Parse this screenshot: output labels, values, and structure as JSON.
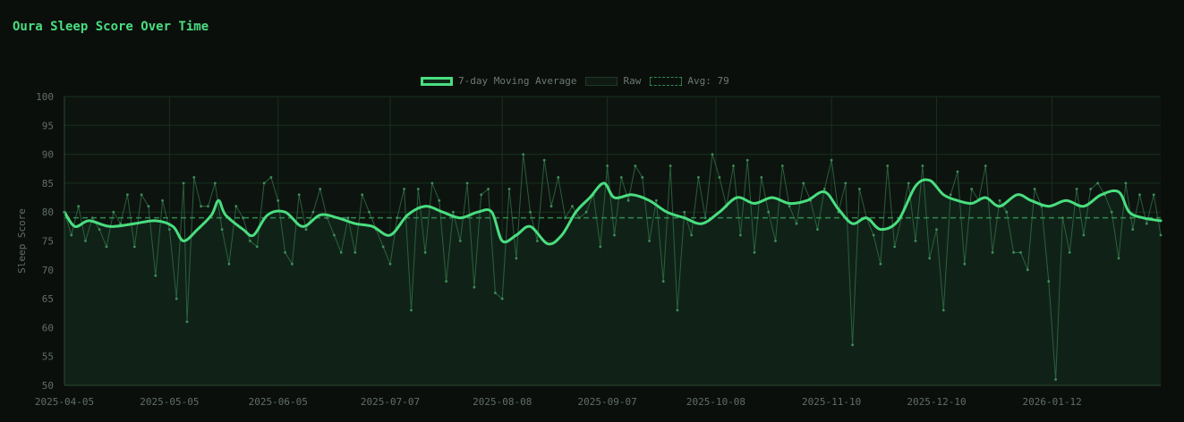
{
  "title": "Oura Sleep Score Over Time",
  "legend": {
    "ma_label": "7-day Moving Average",
    "raw_label": "Raw",
    "avg_label": "Avg: 79"
  },
  "colors": {
    "background": "#0b0f0c",
    "accent": "#4ade80",
    "area_fill": "#112318",
    "grid": "#17301f",
    "axis_text": "#5f6f64",
    "raw_line": "#2f6b44",
    "avg_line": "#2f8a4e"
  },
  "chart_data": {
    "type": "line",
    "title": "Oura Sleep Score Over Time",
    "xlabel": "",
    "ylabel": "Sleep Score",
    "ylim": [
      50,
      100
    ],
    "yticks": [
      50,
      55,
      60,
      65,
      70,
      75,
      80,
      85,
      90,
      95,
      100
    ],
    "xlim": [
      "2025-04-05",
      "2026-02-12"
    ],
    "xticks": [
      "2025-04-05",
      "2025-05-05",
      "2025-06-05",
      "2025-07-07",
      "2025-08-08",
      "2025-09-07",
      "2025-10-08",
      "2025-11-10",
      "2025-12-10",
      "2026-01-12"
    ],
    "grid": true,
    "legend_position": "top-center",
    "average": 79,
    "series": [
      {
        "name": "7-day Moving Average",
        "points": [
          [
            "2025-04-05",
            80
          ],
          [
            "2025-04-08",
            77.5
          ],
          [
            "2025-04-12",
            78.5
          ],
          [
            "2025-04-18",
            77.5
          ],
          [
            "2025-04-25",
            78
          ],
          [
            "2025-05-01",
            78.5
          ],
          [
            "2025-05-06",
            77.5
          ],
          [
            "2025-05-09",
            75
          ],
          [
            "2025-05-13",
            77
          ],
          [
            "2025-05-17",
            79.5
          ],
          [
            "2025-05-19",
            82
          ],
          [
            "2025-05-21",
            79.5
          ],
          [
            "2025-05-26",
            77
          ],
          [
            "2025-05-29",
            76
          ],
          [
            "2025-06-02",
            79.5
          ],
          [
            "2025-06-07",
            80
          ],
          [
            "2025-06-12",
            77.5
          ],
          [
            "2025-06-17",
            79.5
          ],
          [
            "2025-06-22",
            79
          ],
          [
            "2025-06-27",
            78
          ],
          [
            "2025-07-02",
            77.5
          ],
          [
            "2025-07-07",
            76
          ],
          [
            "2025-07-12",
            79.5
          ],
          [
            "2025-07-17",
            81
          ],
          [
            "2025-07-22",
            80
          ],
          [
            "2025-07-27",
            79
          ],
          [
            "2025-08-01",
            80
          ],
          [
            "2025-08-05",
            80
          ],
          [
            "2025-08-08",
            75
          ],
          [
            "2025-08-12",
            76
          ],
          [
            "2025-08-16",
            77.5
          ],
          [
            "2025-08-21",
            74.5
          ],
          [
            "2025-08-25",
            76
          ],
          [
            "2025-08-29",
            80
          ],
          [
            "2025-09-02",
            82.5
          ],
          [
            "2025-09-06",
            85
          ],
          [
            "2025-09-09",
            82.5
          ],
          [
            "2025-09-14",
            83
          ],
          [
            "2025-09-19",
            82
          ],
          [
            "2025-09-24",
            80
          ],
          [
            "2025-09-29",
            79
          ],
          [
            "2025-10-04",
            78
          ],
          [
            "2025-10-09",
            80
          ],
          [
            "2025-10-14",
            82.5
          ],
          [
            "2025-10-19",
            81.5
          ],
          [
            "2025-10-24",
            82.5
          ],
          [
            "2025-10-29",
            81.5
          ],
          [
            "2025-11-03",
            82
          ],
          [
            "2025-11-08",
            83.5
          ],
          [
            "2025-11-12",
            80.5
          ],
          [
            "2025-11-16",
            78
          ],
          [
            "2025-11-20",
            79
          ],
          [
            "2025-11-24",
            77
          ],
          [
            "2025-11-29",
            78.5
          ],
          [
            "2025-12-04",
            84.5
          ],
          [
            "2025-12-08",
            85.5
          ],
          [
            "2025-12-12",
            83
          ],
          [
            "2025-12-16",
            82
          ],
          [
            "2025-12-20",
            81.5
          ],
          [
            "2025-12-24",
            82.5
          ],
          [
            "2025-12-28",
            81
          ],
          [
            "2026-01-02",
            83
          ],
          [
            "2026-01-06",
            82
          ],
          [
            "2026-01-11",
            81
          ],
          [
            "2026-01-16",
            82
          ],
          [
            "2026-01-21",
            81
          ],
          [
            "2026-01-26",
            83
          ],
          [
            "2026-01-31",
            83.5
          ],
          [
            "2026-02-03",
            80
          ],
          [
            "2026-02-07",
            79
          ],
          [
            "2026-02-12",
            78.5
          ]
        ]
      },
      {
        "name": "Raw",
        "points": [
          [
            "2025-04-05",
            80
          ],
          [
            "2025-04-07",
            76
          ],
          [
            "2025-04-09",
            81
          ],
          [
            "2025-04-11",
            75
          ],
          [
            "2025-04-13",
            79
          ],
          [
            "2025-04-15",
            77
          ],
          [
            "2025-04-17",
            74
          ],
          [
            "2025-04-19",
            80
          ],
          [
            "2025-04-21",
            78
          ],
          [
            "2025-04-23",
            83
          ],
          [
            "2025-04-25",
            74
          ],
          [
            "2025-04-27",
            83
          ],
          [
            "2025-04-29",
            81
          ],
          [
            "2025-05-01",
            69
          ],
          [
            "2025-05-03",
            82
          ],
          [
            "2025-05-05",
            77
          ],
          [
            "2025-05-07",
            65
          ],
          [
            "2025-05-09",
            85
          ],
          [
            "2025-05-10",
            61
          ],
          [
            "2025-05-12",
            86
          ],
          [
            "2025-05-14",
            81
          ],
          [
            "2025-05-16",
            81
          ],
          [
            "2025-05-18",
            85
          ],
          [
            "2025-05-20",
            77
          ],
          [
            "2025-05-22",
            71
          ],
          [
            "2025-05-24",
            81
          ],
          [
            "2025-05-26",
            79
          ],
          [
            "2025-05-28",
            75
          ],
          [
            "2025-05-30",
            74
          ],
          [
            "2025-06-01",
            85
          ],
          [
            "2025-06-03",
            86
          ],
          [
            "2025-06-05",
            82
          ],
          [
            "2025-06-07",
            73
          ],
          [
            "2025-06-09",
            71
          ],
          [
            "2025-06-11",
            83
          ],
          [
            "2025-06-13",
            77
          ],
          [
            "2025-06-15",
            80
          ],
          [
            "2025-06-17",
            84
          ],
          [
            "2025-06-19",
            79
          ],
          [
            "2025-06-21",
            76
          ],
          [
            "2025-06-23",
            73
          ],
          [
            "2025-06-25",
            79
          ],
          [
            "2025-06-27",
            73
          ],
          [
            "2025-06-29",
            83
          ],
          [
            "2025-07-01",
            80
          ],
          [
            "2025-07-03",
            77
          ],
          [
            "2025-07-05",
            74
          ],
          [
            "2025-07-07",
            71
          ],
          [
            "2025-07-09",
            79
          ],
          [
            "2025-07-11",
            84
          ],
          [
            "2025-07-13",
            63
          ],
          [
            "2025-07-15",
            84
          ],
          [
            "2025-07-17",
            73
          ],
          [
            "2025-07-19",
            85
          ],
          [
            "2025-07-21",
            82
          ],
          [
            "2025-07-23",
            68
          ],
          [
            "2025-07-25",
            80
          ],
          [
            "2025-07-27",
            75
          ],
          [
            "2025-07-29",
            85
          ],
          [
            "2025-07-31",
            67
          ],
          [
            "2025-08-02",
            83
          ],
          [
            "2025-08-04",
            84
          ],
          [
            "2025-08-06",
            66
          ],
          [
            "2025-08-08",
            65
          ],
          [
            "2025-08-10",
            84
          ],
          [
            "2025-08-12",
            72
          ],
          [
            "2025-08-14",
            90
          ],
          [
            "2025-08-16",
            80
          ],
          [
            "2025-08-18",
            75
          ],
          [
            "2025-08-20",
            89
          ],
          [
            "2025-08-22",
            81
          ],
          [
            "2025-08-24",
            86
          ],
          [
            "2025-08-26",
            79
          ],
          [
            "2025-08-28",
            81
          ],
          [
            "2025-08-30",
            79
          ],
          [
            "2025-09-01",
            80
          ],
          [
            "2025-09-03",
            83
          ],
          [
            "2025-09-05",
            74
          ],
          [
            "2025-09-07",
            88
          ],
          [
            "2025-09-09",
            76
          ],
          [
            "2025-09-11",
            86
          ],
          [
            "2025-09-13",
            82
          ],
          [
            "2025-09-15",
            88
          ],
          [
            "2025-09-17",
            86
          ],
          [
            "2025-09-19",
            75
          ],
          [
            "2025-09-21",
            82
          ],
          [
            "2025-09-23",
            68
          ],
          [
            "2025-09-25",
            88
          ],
          [
            "2025-09-27",
            63
          ],
          [
            "2025-09-29",
            80
          ],
          [
            "2025-10-01",
            76
          ],
          [
            "2025-10-03",
            86
          ],
          [
            "2025-10-05",
            79
          ],
          [
            "2025-10-07",
            90
          ],
          [
            "2025-10-09",
            86
          ],
          [
            "2025-10-11",
            81
          ],
          [
            "2025-10-13",
            88
          ],
          [
            "2025-10-15",
            76
          ],
          [
            "2025-10-17",
            89
          ],
          [
            "2025-10-19",
            73
          ],
          [
            "2025-10-21",
            86
          ],
          [
            "2025-10-23",
            80
          ],
          [
            "2025-10-25",
            75
          ],
          [
            "2025-10-27",
            88
          ],
          [
            "2025-10-29",
            81
          ],
          [
            "2025-10-31",
            78
          ],
          [
            "2025-11-02",
            85
          ],
          [
            "2025-11-04",
            82
          ],
          [
            "2025-11-06",
            77
          ],
          [
            "2025-11-08",
            84
          ],
          [
            "2025-11-10",
            89
          ],
          [
            "2025-11-12",
            80
          ],
          [
            "2025-11-14",
            85
          ],
          [
            "2025-11-16",
            57
          ],
          [
            "2025-11-18",
            84
          ],
          [
            "2025-11-20",
            79
          ],
          [
            "2025-11-22",
            76
          ],
          [
            "2025-11-24",
            71
          ],
          [
            "2025-11-26",
            88
          ],
          [
            "2025-11-28",
            74
          ],
          [
            "2025-11-30",
            79
          ],
          [
            "2025-12-02",
            85
          ],
          [
            "2025-12-04",
            75
          ],
          [
            "2025-12-06",
            88
          ],
          [
            "2025-12-08",
            72
          ],
          [
            "2025-12-10",
            77
          ],
          [
            "2025-12-12",
            63
          ],
          [
            "2025-12-14",
            83
          ],
          [
            "2025-12-16",
            87
          ],
          [
            "2025-12-18",
            71
          ],
          [
            "2025-12-20",
            84
          ],
          [
            "2025-12-22",
            82
          ],
          [
            "2025-12-24",
            88
          ],
          [
            "2025-12-26",
            73
          ],
          [
            "2025-12-28",
            82
          ],
          [
            "2025-12-30",
            80
          ],
          [
            "2026-01-01",
            73
          ],
          [
            "2026-01-03",
            73
          ],
          [
            "2026-01-05",
            70
          ],
          [
            "2026-01-07",
            84
          ],
          [
            "2026-01-09",
            81
          ],
          [
            "2026-01-11",
            68
          ],
          [
            "2026-01-13",
            51
          ],
          [
            "2026-01-15",
            79
          ],
          [
            "2026-01-17",
            73
          ],
          [
            "2026-01-19",
            84
          ],
          [
            "2026-01-21",
            76
          ],
          [
            "2026-01-23",
            84
          ],
          [
            "2026-01-25",
            85
          ],
          [
            "2026-01-27",
            83
          ],
          [
            "2026-01-29",
            80
          ],
          [
            "2026-01-31",
            72
          ],
          [
            "2026-02-02",
            85
          ],
          [
            "2026-02-04",
            77
          ],
          [
            "2026-02-06",
            83
          ],
          [
            "2026-02-08",
            78
          ],
          [
            "2026-02-10",
            83
          ],
          [
            "2026-02-12",
            76
          ]
        ]
      }
    ]
  }
}
